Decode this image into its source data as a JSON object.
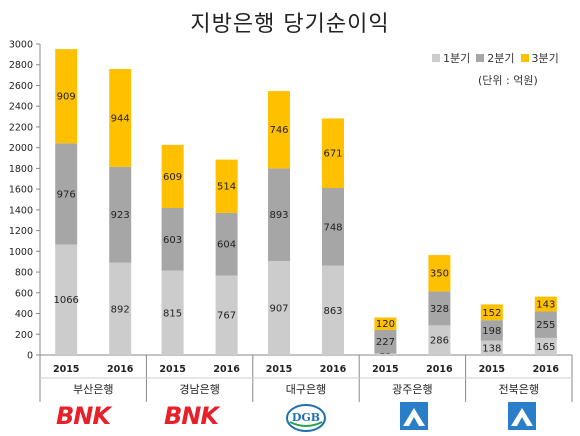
{
  "title": "지방은행 당기순이익",
  "unit_note": "(단위 : 억원)",
  "colors": {
    "q1": "#cccccc",
    "q2": "#a6a6a6",
    "q3": "#ffc000",
    "bnk_red": "#e8202a",
    "dgb_blue": "#1f6fb2",
    "kj_blue": "#2a7dc9"
  },
  "logos": {
    "busan": "BNK",
    "gyeongnam": "BNK",
    "daegu": "DGB",
    "gwangju": "gwangju-bank-logo-icon",
    "jeonbuk": "jeonbuk-bank-logo-icon"
  },
  "chart_data": {
    "type": "bar",
    "stacked": true,
    "title": "지방은행 당기순이익",
    "ylim": [
      0,
      3000
    ],
    "yticks": [
      0,
      200,
      400,
      600,
      800,
      1000,
      1200,
      1400,
      1600,
      1800,
      2000,
      2200,
      2400,
      2600,
      2800,
      3000
    ],
    "grid": false,
    "legend_position": "top-right",
    "groups": [
      "부산은행",
      "경남은행",
      "대구은행",
      "광주은행",
      "전북은행"
    ],
    "categories": [
      "2015",
      "2016",
      "2015",
      "2016",
      "2015",
      "2016",
      "2015",
      "2016",
      "2015",
      "2016"
    ],
    "series": [
      {
        "name": "1분기",
        "values": [
          1066,
          892,
          815,
          767,
          907,
          863,
          15,
          286,
          138,
          165
        ]
      },
      {
        "name": "2분기",
        "values": [
          976,
          923,
          603,
          604,
          893,
          748,
          227,
          328,
          198,
          255
        ]
      },
      {
        "name": "3분기",
        "values": [
          909,
          944,
          609,
          514,
          746,
          671,
          120,
          350,
          152,
          143
        ]
      }
    ]
  }
}
